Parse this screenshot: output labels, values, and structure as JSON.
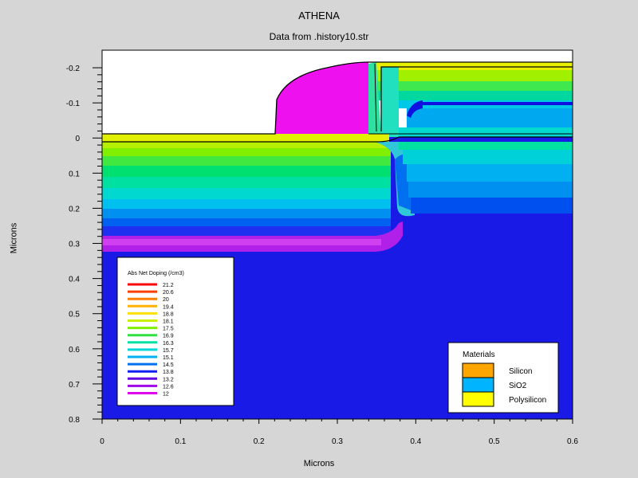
{
  "header": {
    "title": "ATHENA",
    "subtitle": "Data from .history10.str"
  },
  "chart_data": {
    "type": "heatmap",
    "title": "ATHENA",
    "subtitle": "Data from .history10.str",
    "xlabel": "Microns",
    "ylabel": "Microns",
    "xlim": [
      0,
      0.6
    ],
    "ylim": [
      -0.25,
      0.8
    ],
    "y_inverted": true,
    "x_ticks": [
      {
        "v": 0,
        "label": "0"
      },
      {
        "v": 0.1,
        "label": "0.1"
      },
      {
        "v": 0.2,
        "label": "0.2"
      },
      {
        "v": 0.3,
        "label": "0.3"
      },
      {
        "v": 0.4,
        "label": "0.4"
      },
      {
        "v": 0.5,
        "label": "0.5"
      },
      {
        "v": 0.6,
        "label": "0.6"
      }
    ],
    "y_ticks": [
      {
        "v": -0.2,
        "label": "-0.2"
      },
      {
        "v": -0.1,
        "label": "-0.1"
      },
      {
        "v": 0,
        "label": "0"
      },
      {
        "v": 0.1,
        "label": "0.1"
      },
      {
        "v": 0.2,
        "label": "0.2"
      },
      {
        "v": 0.3,
        "label": "0.3"
      },
      {
        "v": 0.4,
        "label": "0.4"
      },
      {
        "v": 0.5,
        "label": "0.5"
      },
      {
        "v": 0.6,
        "label": "0.6"
      },
      {
        "v": 0.7,
        "label": "0.7"
      },
      {
        "v": 0.8,
        "label": "0.8"
      }
    ],
    "doping_legend": {
      "title": "Abs Net Doping (/cm3)",
      "levels": [
        {
          "label": "21.2",
          "color": "#ff0000"
        },
        {
          "label": "20.6",
          "color": "#ff4000"
        },
        {
          "label": "20",
          "color": "#ff8000"
        },
        {
          "label": "19.4",
          "color": "#ffb000"
        },
        {
          "label": "18.8",
          "color": "#ffe000"
        },
        {
          "label": "18.1",
          "color": "#c8f000"
        },
        {
          "label": "17.5",
          "color": "#80f000"
        },
        {
          "label": "16.9",
          "color": "#30e040"
        },
        {
          "label": "16.3",
          "color": "#00e0a0"
        },
        {
          "label": "15.7",
          "color": "#00d8d8"
        },
        {
          "label": "15.1",
          "color": "#00b0f0"
        },
        {
          "label": "14.5",
          "color": "#0070f0"
        },
        {
          "label": "13.8",
          "color": "#1020f0"
        },
        {
          "label": "13.2",
          "color": "#6000e0"
        },
        {
          "label": "12.6",
          "color": "#a000e8"
        },
        {
          "label": "12",
          "color": "#e000f0"
        }
      ]
    },
    "materials_legend": {
      "title": "Materials",
      "items": [
        {
          "label": "Silicon",
          "color": "#ffa500"
        },
        {
          "label": "SiO2",
          "color": "#00b4ff"
        },
        {
          "label": "Polysilicon",
          "color": "#ffff00"
        }
      ]
    }
  }
}
